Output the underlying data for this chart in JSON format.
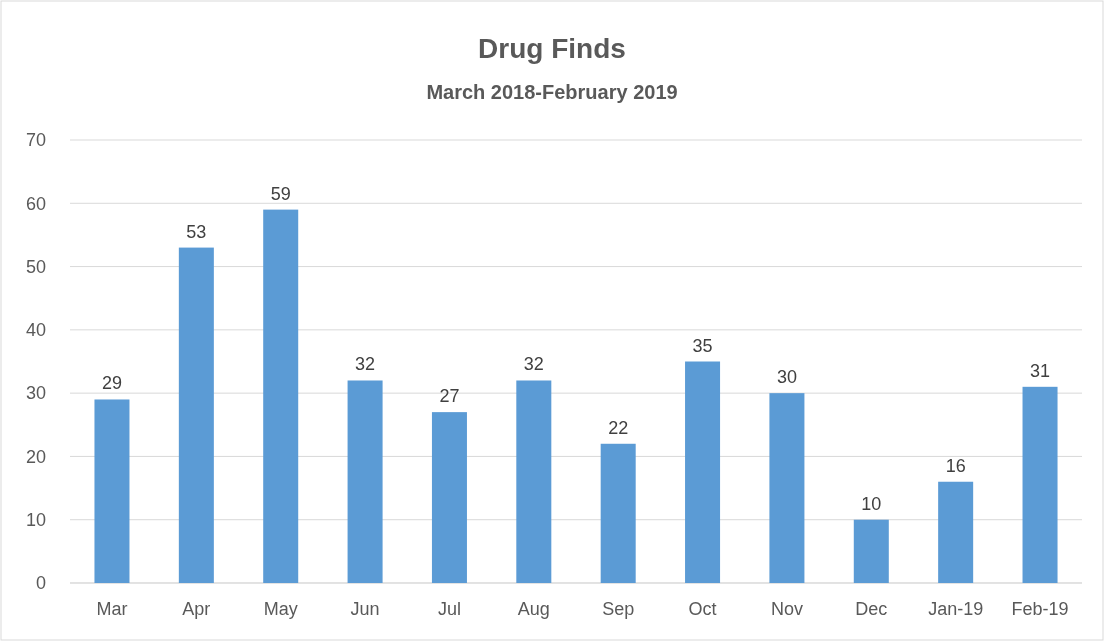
{
  "chart_data": {
    "type": "bar",
    "title": "Drug Finds",
    "subtitle": "March 2018-February 2019",
    "categories": [
      "Mar",
      "Apr",
      "May",
      "Jun",
      "Jul",
      "Aug",
      "Sep",
      "Oct",
      "Nov",
      "Dec",
      "Jan-19",
      "Feb-19"
    ],
    "values": [
      29,
      53,
      59,
      32,
      27,
      32,
      22,
      35,
      30,
      10,
      16,
      31
    ],
    "color": "#5b9bd5",
    "ylim": [
      0,
      70
    ],
    "yticks": [
      0,
      10,
      20,
      30,
      40,
      50,
      60,
      70
    ],
    "grid": "y",
    "data_labels": true
  }
}
